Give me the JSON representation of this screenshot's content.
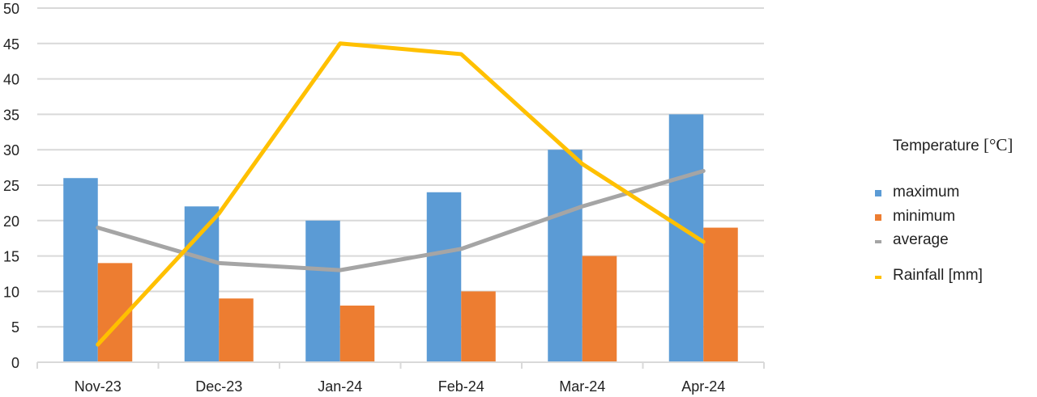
{
  "chart_data": {
    "type": "bar",
    "title": "",
    "xlabel": "",
    "ylabel": "",
    "ylim": [
      0,
      50
    ],
    "yticks": [
      0,
      5,
      10,
      15,
      20,
      25,
      30,
      35,
      40,
      45,
      50
    ],
    "grid": true,
    "legend_position": "right",
    "categories": [
      "Nov-23",
      "Dec-23",
      "Jan-24",
      "Feb-24",
      "Mar-24",
      "Apr-24"
    ],
    "series": [
      {
        "name": "maximum",
        "type": "bar",
        "group": "Temperature [°C]",
        "color": "#5B9BD5",
        "values": [
          26,
          22,
          20,
          24,
          30,
          35
        ]
      },
      {
        "name": "minimum",
        "type": "bar",
        "group": "Temperature [°C]",
        "color": "#ED7D31",
        "values": [
          14,
          9,
          8,
          10,
          15,
          19
        ]
      },
      {
        "name": "average",
        "type": "line",
        "group": "Temperature [°C]",
        "color": "#A5A5A5",
        "values": [
          19,
          14,
          13,
          16,
          22,
          27
        ]
      },
      {
        "name": "Rainfall [mm]",
        "type": "line",
        "color": "#FFC000",
        "values": [
          2.5,
          21,
          45,
          43.5,
          28,
          17
        ]
      }
    ]
  },
  "legend": {
    "title_text": "Temperature ",
    "title_unit": "[°C]",
    "items": [
      {
        "label": "maximum",
        "color": "#5B9BD5",
        "kind": "box"
      },
      {
        "label": "minimum",
        "color": "#ED7D31",
        "kind": "box"
      },
      {
        "label": "average",
        "color": "#A5A5A5",
        "kind": "line"
      },
      {
        "label": "Rainfall [mm]",
        "color": "#FFC000",
        "kind": "line"
      }
    ]
  }
}
